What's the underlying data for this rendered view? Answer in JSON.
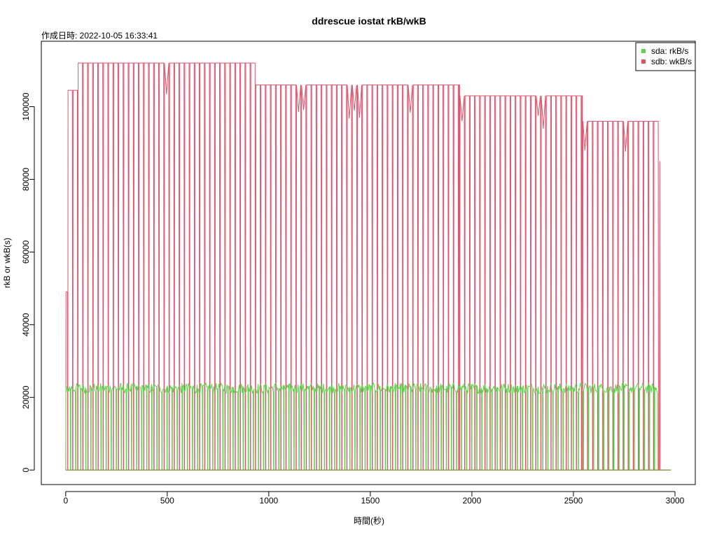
{
  "chart_data": {
    "type": "line",
    "title": "ddrescue iostat rkB/wkB",
    "subtitle": "作成日時: 2022-10-05 16:33:41",
    "xlabel": "時間(秒)",
    "ylabel": "rkB or wkB(s)",
    "xlim": [
      -120,
      3100
    ],
    "ylim": [
      -4000,
      118000
    ],
    "x_ticks": [
      0,
      500,
      1000,
      1500,
      2000,
      2500,
      3000
    ],
    "x_tick_labels": [
      "0",
      "500",
      "1000",
      "1500",
      "2000",
      "2500",
      "3000"
    ],
    "y_ticks": [
      0,
      20000,
      40000,
      60000,
      80000,
      100000
    ],
    "y_tick_labels": [
      "0",
      "20000",
      "40000",
      "60000",
      "80000",
      "100000"
    ],
    "grid": false,
    "legend_position": "top-right",
    "x_end": 2980,
    "series": [
      {
        "name": "sda: rkB/s",
        "color": "#61D04F",
        "level": 22500,
        "gap_level": 0,
        "segments": [
          [
            0,
            2915
          ]
        ],
        "noise": 1800
      },
      {
        "name": "sdb: wkB/s",
        "color": "#DF536B",
        "bursts": [
          {
            "x_start": 0,
            "x_end": 10,
            "peak": 49000
          },
          {
            "x_start": 10,
            "x_end": 60,
            "peak": 104500
          },
          {
            "x_start": 60,
            "x_end": 935,
            "peak": 112000
          },
          {
            "x_start": 935,
            "x_end": 1940,
            "peak": 106000
          },
          {
            "x_start": 1940,
            "x_end": 2545,
            "peak": 103000
          },
          {
            "x_start": 2545,
            "x_end": 2920,
            "peak": 96000
          }
        ],
        "period": 25,
        "tail": {
          "x": 2925,
          "value": 85000
        }
      }
    ]
  }
}
